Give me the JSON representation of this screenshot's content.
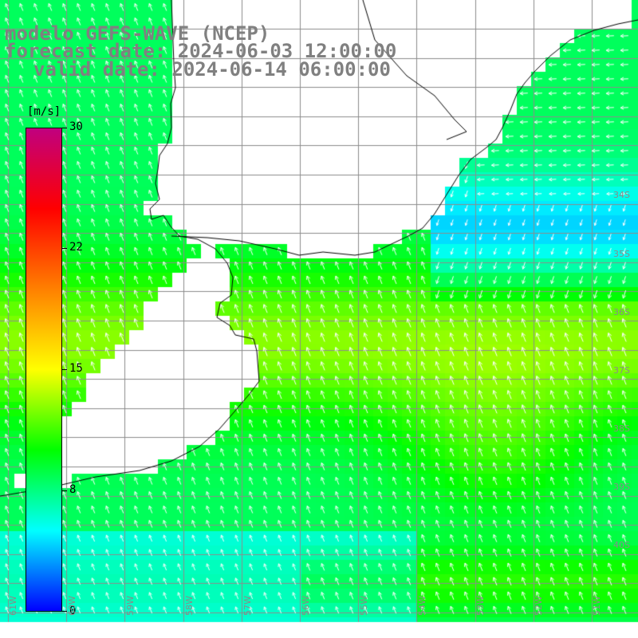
{
  "map": {
    "title_model": "modelo GEFS-WAVE (NCEP)",
    "title_forecast": "forecast date: 2024-06-03 12:00:00",
    "title_valid": "valid date: 2024-06-14 06:00:00",
    "variable": "wind speed and direction",
    "land_color": "#ffffff",
    "grid_color": "#8c8c8c",
    "coast_color": "#000000",
    "arrow_color": "#ffffff"
  },
  "colorbar": {
    "unit": "[m/s]",
    "min": 0,
    "max": 30,
    "ticks": [
      "30",
      "22",
      "15",
      "8",
      "0"
    ],
    "colors": [
      "#0000ff",
      "#00ffff",
      "#00ff00",
      "#ffff00",
      "#ff8000",
      "#ff0000",
      "#c0007f"
    ]
  },
  "lat_labels": [
    "34S",
    "35S",
    "36S",
    "37S",
    "38S",
    "39S",
    "40S"
  ],
  "lon_labels": [
    "61W",
    "60W",
    "59W",
    "58W",
    "57W",
    "56W",
    "55W",
    "54W",
    "53W",
    "52W",
    "51W"
  ]
}
